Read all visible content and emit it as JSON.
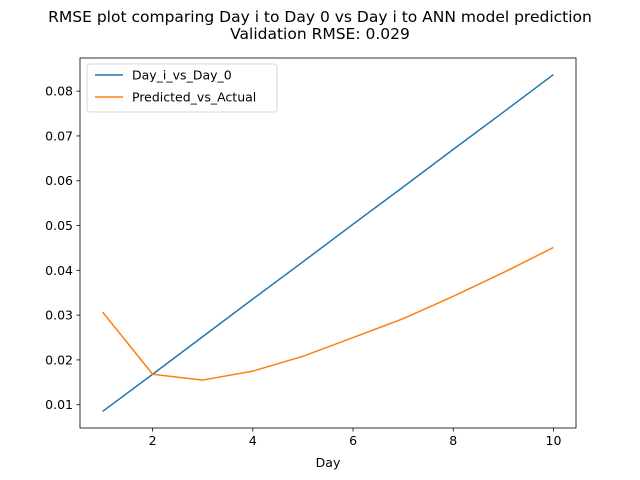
{
  "chart_data": {
    "type": "line",
    "title": "RMSE plot comparing Day i to Day 0 vs Day i to ANN model prediction",
    "subtitle": "Validation RMSE: 0.029",
    "xlabel": "Day",
    "ylabel": "",
    "xlim": [
      0.55,
      10.45
    ],
    "ylim": [
      0.0048,
      0.0874
    ],
    "xticks": [
      2,
      4,
      6,
      8,
      10
    ],
    "xtick_labels": [
      "2",
      "4",
      "6",
      "8",
      "10"
    ],
    "yticks": [
      0.01,
      0.02,
      0.03,
      0.04,
      0.05,
      0.06,
      0.07,
      0.08
    ],
    "ytick_labels": [
      "0.01",
      "0.02",
      "0.03",
      "0.04",
      "0.05",
      "0.06",
      "0.07",
      "0.08"
    ],
    "grid": false,
    "legend_position": "upper-left",
    "x": [
      1,
      2,
      3,
      4,
      5,
      6,
      7,
      8,
      9,
      10
    ],
    "series": [
      {
        "name": "Day_i_vs_Day_0",
        "color": "#1f77b4",
        "values": [
          0.0085,
          0.0168,
          0.0252,
          0.0336,
          0.0419,
          0.0503,
          0.0586,
          0.067,
          0.0753,
          0.0837
        ]
      },
      {
        "name": "Predicted_vs_Actual",
        "color": "#ff7f0e",
        "values": [
          0.0307,
          0.0168,
          0.0155,
          0.0175,
          0.0208,
          0.025,
          0.0292,
          0.0342,
          0.0395,
          0.0451
        ]
      }
    ]
  }
}
